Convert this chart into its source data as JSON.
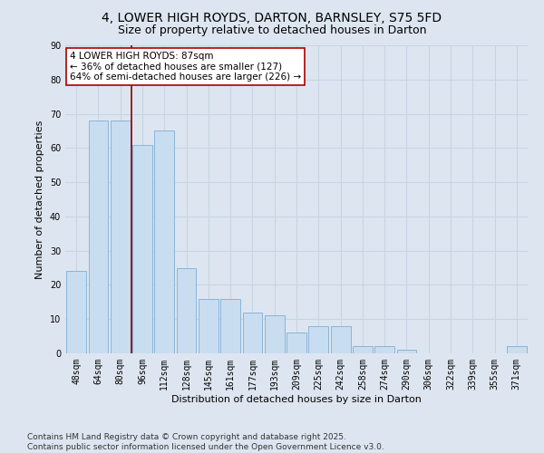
{
  "title1": "4, LOWER HIGH ROYDS, DARTON, BARNSLEY, S75 5FD",
  "title2": "Size of property relative to detached houses in Darton",
  "xlabel": "Distribution of detached houses by size in Darton",
  "ylabel": "Number of detached properties",
  "categories": [
    "48sqm",
    "64sqm",
    "80sqm",
    "96sqm",
    "112sqm",
    "128sqm",
    "145sqm",
    "161sqm",
    "177sqm",
    "193sqm",
    "209sqm",
    "225sqm",
    "242sqm",
    "258sqm",
    "274sqm",
    "290sqm",
    "306sqm",
    "322sqm",
    "339sqm",
    "355sqm",
    "371sqm"
  ],
  "values": [
    24,
    68,
    68,
    61,
    65,
    25,
    16,
    16,
    12,
    11,
    6,
    8,
    8,
    2,
    2,
    1,
    0,
    0,
    0,
    0,
    2
  ],
  "bar_color": "#c9ddf0",
  "bar_edge_color": "#8ab4d8",
  "vline_x": 2.5,
  "vline_color": "#8b0000",
  "annotation_text": "4 LOWER HIGH ROYDS: 87sqm\n← 36% of detached houses are smaller (127)\n64% of semi-detached houses are larger (226) →",
  "annotation_box_color": "#ffffff",
  "annotation_box_edge": "#aa0000",
  "ylim": [
    0,
    90
  ],
  "yticks": [
    0,
    10,
    20,
    30,
    40,
    50,
    60,
    70,
    80,
    90
  ],
  "background_color": "#dde6f0",
  "grid_color": "#c8d4e3",
  "footer": "Contains HM Land Registry data © Crown copyright and database right 2025.\nContains public sector information licensed under the Open Government Licence v3.0.",
  "title_fontsize": 10,
  "subtitle_fontsize": 9,
  "axis_label_fontsize": 8,
  "tick_fontsize": 7,
  "annotation_fontsize": 7.5,
  "footer_fontsize": 6.5
}
